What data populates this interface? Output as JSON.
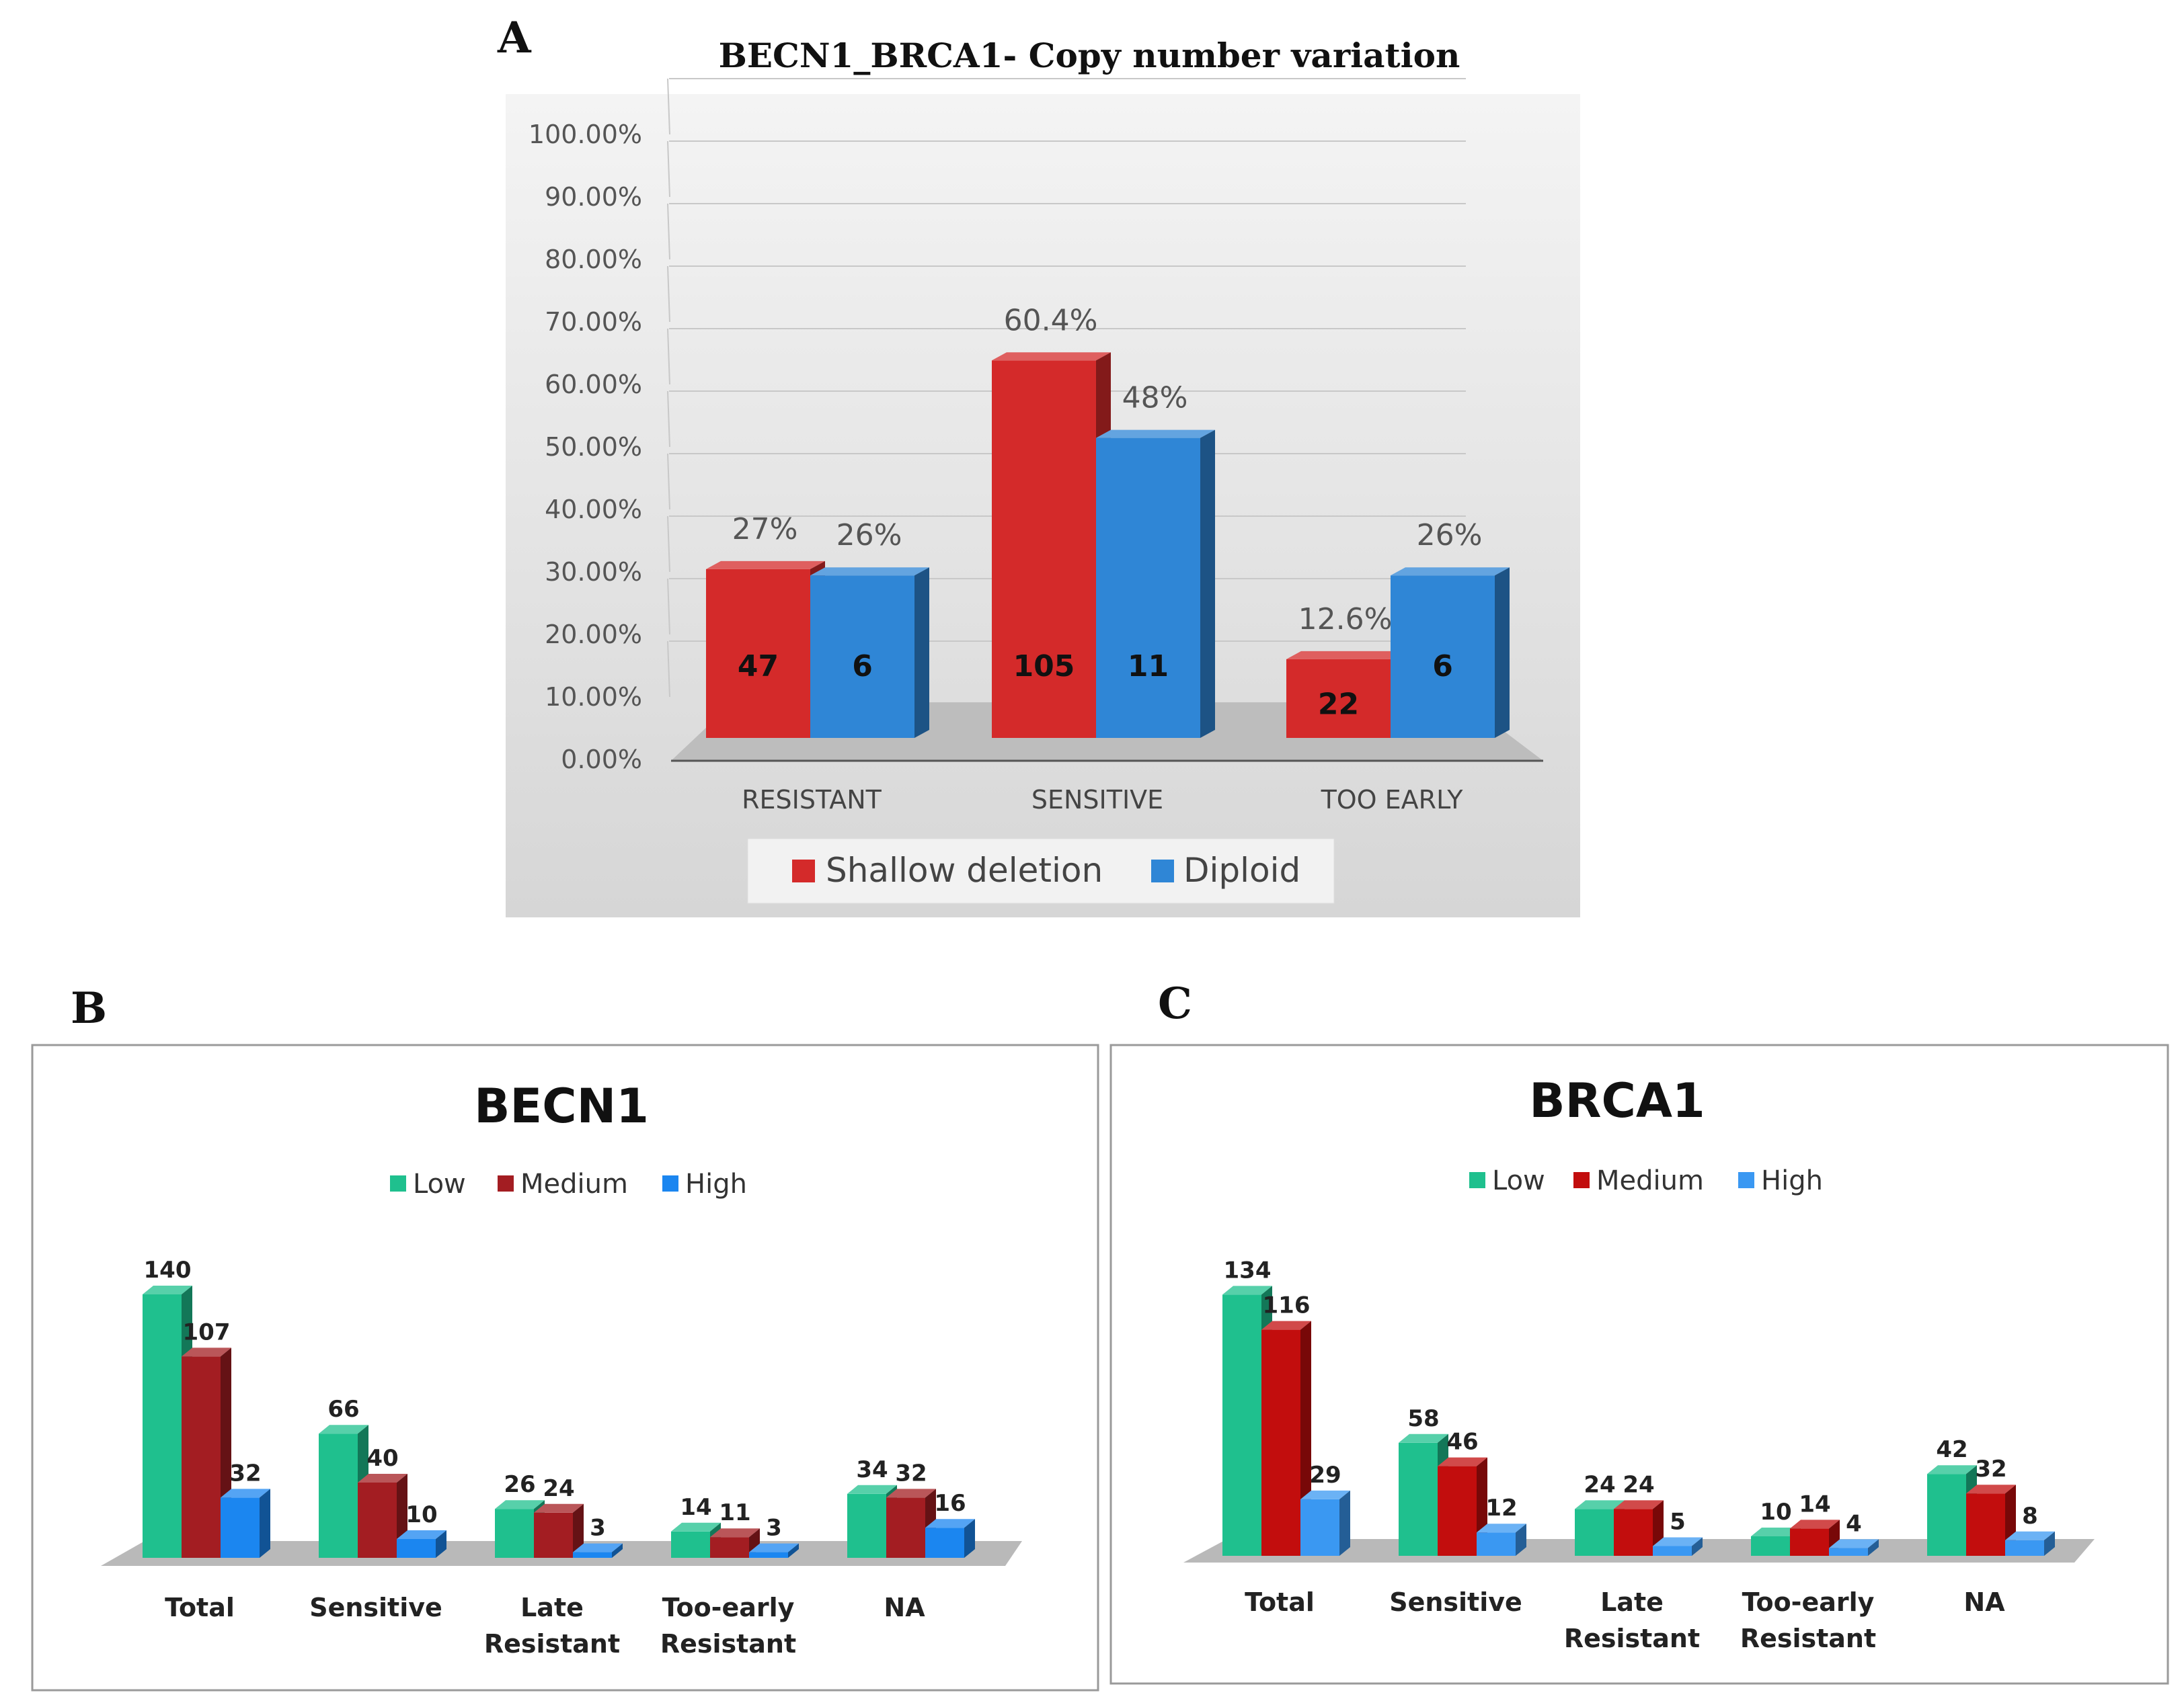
{
  "chart_data": [
    {
      "panel": "A",
      "type": "bar",
      "title": "BECN1_BRCA1- Copy number variation",
      "categories": [
        "RESISTANT",
        "SENSITIVE",
        "TOO EARLY"
      ],
      "ylim": [
        0,
        100
      ],
      "yticks": [
        "0.00%",
        "10.00%",
        "20.00%",
        "30.00%",
        "40.00%",
        "50.00%",
        "60.00%",
        "70.00%",
        "80.00%",
        "90.00%",
        "100.00%"
      ],
      "legend_position": "bottom",
      "series": [
        {
          "name": "Shallow deletion",
          "color": "#d42a2a",
          "values": [
            27,
            60.4,
            12.6
          ],
          "pct_labels": [
            "27%",
            "60.4%",
            "12.6%"
          ],
          "counts": [
            "47",
            "105",
            "22"
          ]
        },
        {
          "name": "Diploid",
          "color": "#2f86d6",
          "values": [
            26,
            48,
            26
          ],
          "pct_labels": [
            "26%",
            "48%",
            "26%"
          ],
          "counts": [
            "6",
            "11",
            "6"
          ]
        }
      ]
    },
    {
      "panel": "B",
      "type": "bar",
      "title": "BECN1",
      "categories": [
        [
          "Total"
        ],
        [
          "Sensitive"
        ],
        [
          "Late",
          "Resistant"
        ],
        [
          "Too-early",
          "Resistant"
        ],
        [
          "NA"
        ]
      ],
      "legend_position": "top",
      "series": [
        {
          "name": "Low",
          "color": "#1fc08e",
          "values": [
            140,
            66,
            26,
            14,
            34
          ]
        },
        {
          "name": "Medium",
          "color": "#a31d22",
          "values": [
            107,
            40,
            24,
            11,
            32
          ]
        },
        {
          "name": "High",
          "color": "#1b86f0",
          "values": [
            32,
            10,
            3,
            3,
            16
          ]
        }
      ]
    },
    {
      "panel": "C",
      "type": "bar",
      "title": "BRCA1",
      "categories": [
        [
          "Total"
        ],
        [
          "Sensitive"
        ],
        [
          "Late",
          "Resistant"
        ],
        [
          "Too-early",
          "Resistant"
        ],
        [
          "NA"
        ]
      ],
      "legend_position": "top",
      "series": [
        {
          "name": "Low",
          "color": "#1fc08e",
          "values": [
            134,
            58,
            24,
            10,
            42
          ]
        },
        {
          "name": "Medium",
          "color": "#c20d0d",
          "values": [
            116,
            46,
            24,
            14,
            32
          ]
        },
        {
          "name": "High",
          "color": "#3a98f2",
          "values": [
            29,
            12,
            5,
            4,
            8
          ]
        }
      ]
    }
  ]
}
